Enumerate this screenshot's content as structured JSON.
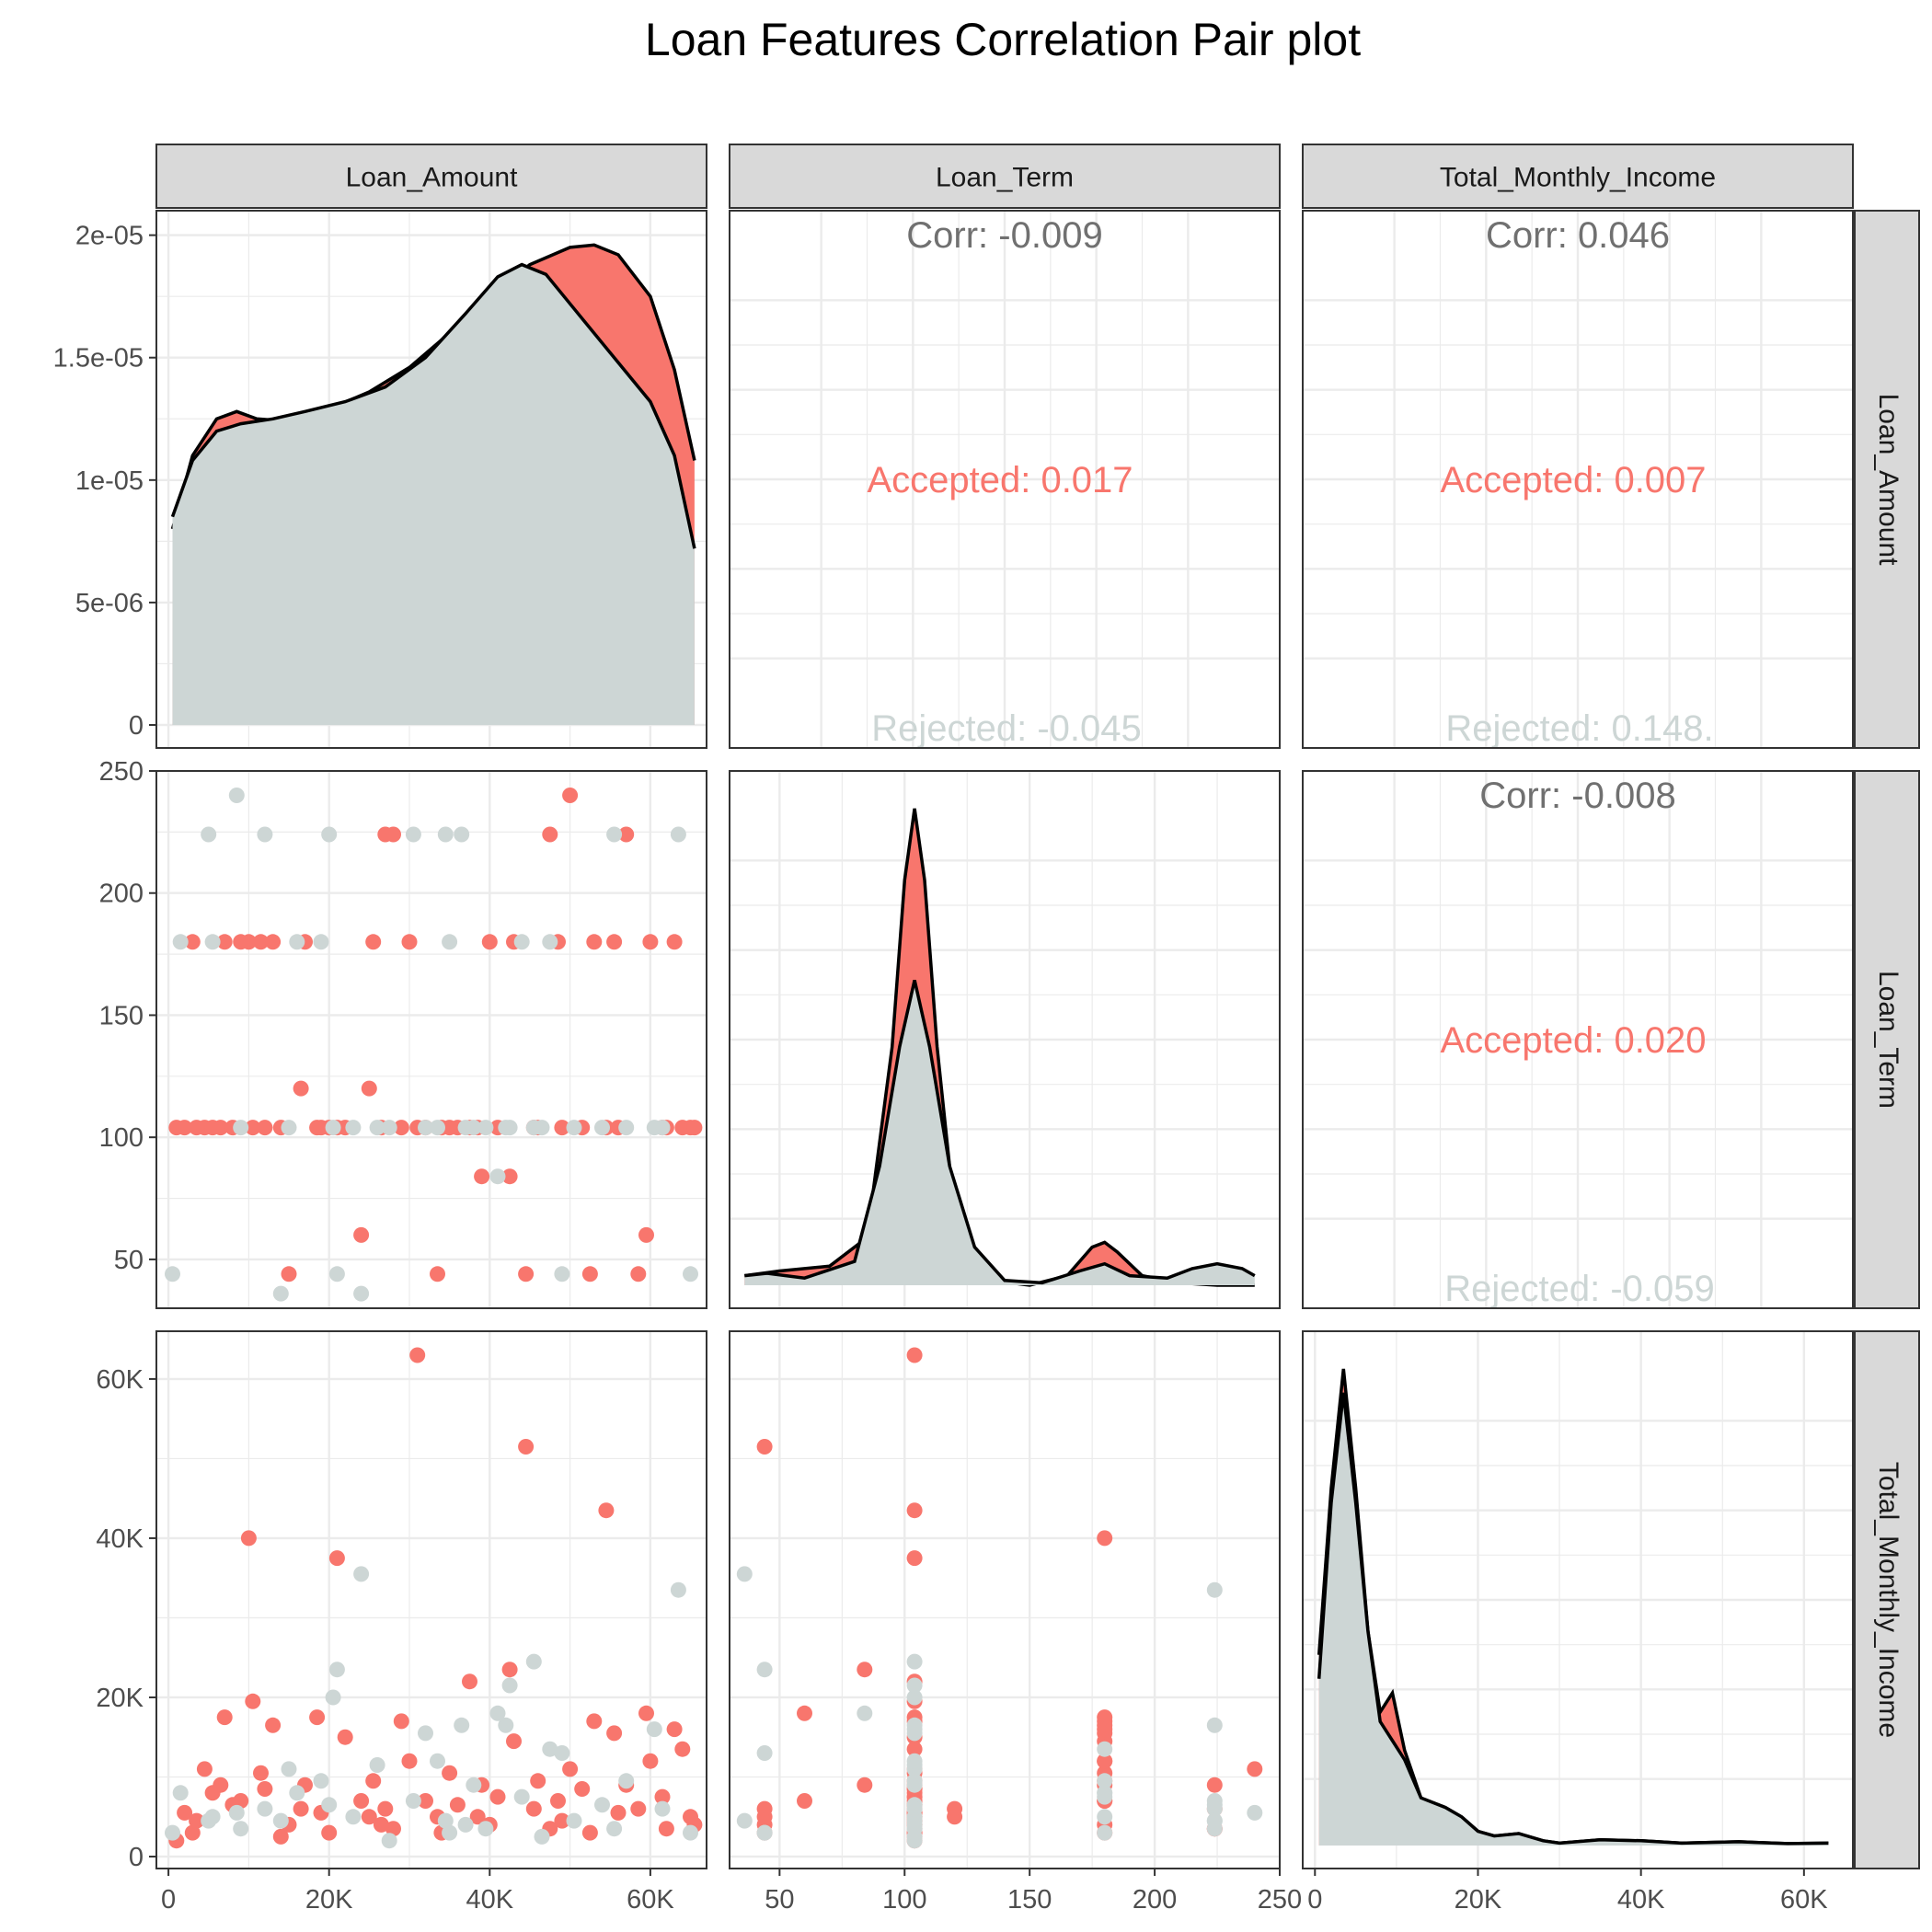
{
  "title": "Loan Features Correlation Pair plot",
  "variables": [
    "Loan_Amount",
    "Loan_Term",
    "Total_Monthly_Income"
  ],
  "colors": {
    "accepted": "#F8766D",
    "rejected": "#CDD6D5",
    "corr_text": "#707070",
    "strip_fill": "#D9D9D9",
    "grid": "#EBEBEB"
  },
  "chart_data": {
    "type": "scatter",
    "title": "Loan Features Correlation Pair plot",
    "groups": [
      "Accepted",
      "Rejected"
    ],
    "axes": {
      "Loan_Amount": {
        "range": [
          -1500,
          67000
        ],
        "ticks": [
          0,
          20000,
          40000,
          60000
        ],
        "tick_labels": [
          "0",
          "20K",
          "40K",
          "60K"
        ]
      },
      "Loan_Term": {
        "range": [
          30,
          250
        ],
        "ticks": [
          50,
          100,
          150,
          200,
          250
        ],
        "tick_labels": [
          "50",
          "100",
          "150",
          "200",
          "250"
        ]
      },
      "Total_Monthly_Income": {
        "range": [
          -1500,
          66000
        ],
        "ticks": [
          0,
          20000,
          40000,
          60000
        ],
        "tick_labels": [
          "0",
          "20K",
          "40K",
          "60K"
        ]
      },
      "density_1_1": {
        "range": [
          0,
          2.1e-05
        ],
        "ticks": [
          0,
          5e-06,
          1e-05,
          1.5e-05,
          2e-05
        ],
        "tick_labels": [
          "0",
          "5e-06",
          "1e-05",
          "1.5e-05",
          "2e-05"
        ]
      }
    },
    "correlations": {
      "Loan_Amount__Loan_Term": {
        "overall": "Corr: -0.009",
        "accepted": "Accepted: 0.017",
        "rejected": "Rejected: -0.045"
      },
      "Loan_Amount__Total_Monthly_Income": {
        "overall": "Corr: 0.046",
        "accepted": "Accepted: 0.007",
        "rejected": "Rejected: 0.148."
      },
      "Loan_Term__Total_Monthly_Income": {
        "overall": "Corr: -0.008",
        "accepted": "Accepted: 0.020",
        "rejected": "Rejected: -0.059"
      }
    },
    "densities": {
      "Loan_Amount": {
        "accepted": [
          [
            500,
            8e-06
          ],
          [
            3000,
            1.1e-05
          ],
          [
            6000,
            1.25e-05
          ],
          [
            8500,
            1.28e-05
          ],
          [
            11000,
            1.25e-05
          ],
          [
            15000,
            1.24e-05
          ],
          [
            20000,
            1.29e-05
          ],
          [
            25000,
            1.36e-05
          ],
          [
            30000,
            1.46e-05
          ],
          [
            35000,
            1.6e-05
          ],
          [
            40000,
            1.75e-05
          ],
          [
            45000,
            1.88e-05
          ],
          [
            50000,
            1.95e-05
          ],
          [
            53000,
            1.96e-05
          ],
          [
            56000,
            1.92e-05
          ],
          [
            60000,
            1.75e-05
          ],
          [
            63000,
            1.45e-05
          ],
          [
            65500,
            1.08e-05
          ]
        ],
        "rejected": [
          [
            500,
            8.5e-06
          ],
          [
            3000,
            1.08e-05
          ],
          [
            6000,
            1.2e-05
          ],
          [
            9000,
            1.23e-05
          ],
          [
            13000,
            1.25e-05
          ],
          [
            17000,
            1.28e-05
          ],
          [
            22000,
            1.32e-05
          ],
          [
            27000,
            1.38e-05
          ],
          [
            32000,
            1.5e-05
          ],
          [
            37000,
            1.68e-05
          ],
          [
            41000,
            1.83e-05
          ],
          [
            44000,
            1.88e-05
          ],
          [
            47000,
            1.84e-05
          ],
          [
            50000,
            1.72e-05
          ],
          [
            55000,
            1.52e-05
          ],
          [
            60000,
            1.32e-05
          ],
          [
            63000,
            1.1e-05
          ],
          [
            65500,
            7.2e-06
          ]
        ]
      },
      "Loan_Term": {
        "accepted": [
          [
            36,
            0.02
          ],
          [
            50,
            0.03
          ],
          [
            70,
            0.04
          ],
          [
            85,
            0.1
          ],
          [
            95,
            0.5
          ],
          [
            100,
            0.85
          ],
          [
            104,
            1.0
          ],
          [
            108,
            0.85
          ],
          [
            113,
            0.5
          ],
          [
            120,
            0.15
          ],
          [
            135,
            0.01
          ],
          [
            150,
            0.0
          ],
          [
            165,
            0.02
          ],
          [
            175,
            0.08
          ],
          [
            180,
            0.09
          ],
          [
            185,
            0.07
          ],
          [
            195,
            0.02
          ],
          [
            210,
            0.005
          ],
          [
            225,
            0.0
          ],
          [
            240,
            0.0
          ]
        ],
        "rejected": [
          [
            36,
            0.02
          ],
          [
            45,
            0.025
          ],
          [
            60,
            0.015
          ],
          [
            80,
            0.05
          ],
          [
            90,
            0.25
          ],
          [
            98,
            0.5
          ],
          [
            104,
            0.64
          ],
          [
            110,
            0.5
          ],
          [
            118,
            0.25
          ],
          [
            128,
            0.08
          ],
          [
            140,
            0.01
          ],
          [
            155,
            0.005
          ],
          [
            170,
            0.03
          ],
          [
            180,
            0.045
          ],
          [
            190,
            0.02
          ],
          [
            205,
            0.015
          ],
          [
            215,
            0.035
          ],
          [
            225,
            0.045
          ],
          [
            235,
            0.035
          ],
          [
            240,
            0.02
          ]
        ]
      },
      "Total_Monthly_Income": {
        "accepted": [
          [
            500,
            0.4
          ],
          [
            2000,
            0.75
          ],
          [
            3500,
            1.0
          ],
          [
            5000,
            0.75
          ],
          [
            6500,
            0.45
          ],
          [
            8000,
            0.28
          ],
          [
            9500,
            0.32
          ],
          [
            11000,
            0.2
          ],
          [
            13000,
            0.1
          ],
          [
            16000,
            0.08
          ],
          [
            18000,
            0.06
          ],
          [
            20000,
            0.03
          ],
          [
            22000,
            0.02
          ],
          [
            25000,
            0.025
          ],
          [
            28000,
            0.01
          ],
          [
            30000,
            0.005
          ],
          [
            35000,
            0.012
          ],
          [
            40000,
            0.01
          ],
          [
            45000,
            0.005
          ],
          [
            52000,
            0.008
          ],
          [
            58000,
            0.004
          ],
          [
            63000,
            0.005
          ]
        ],
        "rejected": [
          [
            500,
            0.35
          ],
          [
            2000,
            0.72
          ],
          [
            3500,
            0.95
          ],
          [
            5000,
            0.72
          ],
          [
            6500,
            0.45
          ],
          [
            8000,
            0.26
          ],
          [
            9500,
            0.22
          ],
          [
            11000,
            0.18
          ],
          [
            13000,
            0.1
          ],
          [
            16000,
            0.08
          ],
          [
            18000,
            0.06
          ],
          [
            20000,
            0.03
          ],
          [
            22000,
            0.02
          ],
          [
            25000,
            0.025
          ],
          [
            28000,
            0.01
          ],
          [
            30000,
            0.005
          ],
          [
            35000,
            0.012
          ],
          [
            40000,
            0.01
          ],
          [
            45000,
            0.005
          ],
          [
            52000,
            0.008
          ],
          [
            58000,
            0.004
          ],
          [
            63000,
            0.005
          ]
        ]
      }
    },
    "points": {
      "accepted": [
        [
          1000,
          104,
          2000
        ],
        [
          2000,
          104,
          5500
        ],
        [
          3000,
          180,
          3000
        ],
        [
          4500,
          104,
          11000
        ],
        [
          5500,
          104,
          8000
        ],
        [
          6500,
          104,
          9000
        ],
        [
          7000,
          180,
          17500
        ],
        [
          9000,
          180,
          7000
        ],
        [
          10000,
          180,
          40000
        ],
        [
          10500,
          104,
          19500
        ],
        [
          11500,
          180,
          10500
        ],
        [
          12000,
          104,
          8500
        ],
        [
          13000,
          180,
          16500
        ],
        [
          14000,
          104,
          2500
        ],
        [
          15000,
          44,
          4000
        ],
        [
          16500,
          120,
          6000
        ],
        [
          17000,
          180,
          9000
        ],
        [
          18500,
          104,
          17500
        ],
        [
          20000,
          104,
          3000
        ],
        [
          21000,
          104,
          37500
        ],
        [
          22000,
          104,
          15000
        ],
        [
          24000,
          60,
          7000
        ],
        [
          25000,
          120,
          5000
        ],
        [
          25500,
          180,
          9500
        ],
        [
          27000,
          224,
          6000
        ],
        [
          28000,
          224,
          3500
        ],
        [
          29000,
          104,
          17000
        ],
        [
          30000,
          180,
          12000
        ],
        [
          31000,
          104,
          63000
        ],
        [
          32000,
          104,
          7000
        ],
        [
          33500,
          44,
          5000
        ],
        [
          35000,
          104,
          10500
        ],
        [
          36000,
          104,
          6500
        ],
        [
          37500,
          104,
          22000
        ],
        [
          39000,
          84,
          9000
        ],
        [
          40000,
          180,
          4000
        ],
        [
          41000,
          104,
          7500
        ],
        [
          42500,
          84,
          23500
        ],
        [
          43000,
          180,
          14500
        ],
        [
          44500,
          44,
          51500
        ],
        [
          46000,
          104,
          9500
        ],
        [
          47500,
          224,
          3500
        ],
        [
          48500,
          180,
          7000
        ],
        [
          50000,
          240,
          11000
        ],
        [
          51500,
          104,
          8500
        ],
        [
          52500,
          44,
          3000
        ],
        [
          53000,
          180,
          17000
        ],
        [
          54500,
          104,
          43500
        ],
        [
          55500,
          180,
          15500
        ],
        [
          57000,
          224,
          9000
        ],
        [
          58500,
          44,
          6000
        ],
        [
          59500,
          60,
          18000
        ],
        [
          60000,
          180,
          12000
        ],
        [
          61500,
          104,
          7500
        ],
        [
          63000,
          180,
          16000
        ],
        [
          64000,
          104,
          13500
        ],
        [
          65000,
          104,
          5000
        ],
        [
          65500,
          104,
          4000
        ],
        [
          3500,
          104,
          4500
        ],
        [
          8000,
          104,
          6500
        ],
        [
          19000,
          104,
          5500
        ],
        [
          26500,
          104,
          4000
        ],
        [
          34000,
          104,
          3000
        ],
        [
          38500,
          104,
          5000
        ],
        [
          45500,
          104,
          6000
        ],
        [
          49000,
          104,
          4500
        ],
        [
          56000,
          104,
          5500
        ],
        [
          62000,
          104,
          3500
        ]
      ],
      "rejected": [
        [
          500,
          44,
          3000
        ],
        [
          1500,
          180,
          8000
        ],
        [
          5000,
          224,
          4500
        ],
        [
          5500,
          180,
          5000
        ],
        [
          8500,
          240,
          5500
        ],
        [
          9000,
          104,
          3500
        ],
        [
          12000,
          224,
          6000
        ],
        [
          14000,
          36,
          4500
        ],
        [
          15000,
          104,
          11000
        ],
        [
          16000,
          180,
          8000
        ],
        [
          20000,
          224,
          6500
        ],
        [
          20500,
          104,
          20000
        ],
        [
          21000,
          44,
          23500
        ],
        [
          23000,
          104,
          5000
        ],
        [
          24000,
          36,
          35500
        ],
        [
          26000,
          104,
          11500
        ],
        [
          30500,
          224,
          7000
        ],
        [
          32000,
          104,
          15500
        ],
        [
          33500,
          104,
          12000
        ],
        [
          34500,
          224,
          4500
        ],
        [
          35000,
          180,
          3000
        ],
        [
          36500,
          224,
          16500
        ],
        [
          38000,
          104,
          9000
        ],
        [
          39500,
          104,
          3500
        ],
        [
          41000,
          84,
          18000
        ],
        [
          42000,
          104,
          16500
        ],
        [
          42500,
          104,
          21500
        ],
        [
          44000,
          180,
          7500
        ],
        [
          45500,
          104,
          24500
        ],
        [
          47500,
          180,
          13500
        ],
        [
          49000,
          44,
          13000
        ],
        [
          50500,
          104,
          4500
        ],
        [
          54000,
          104,
          6500
        ],
        [
          55500,
          224,
          3500
        ],
        [
          57000,
          104,
          9500
        ],
        [
          60500,
          104,
          16000
        ],
        [
          63500,
          224,
          33500
        ],
        [
          65000,
          44,
          3000
        ],
        [
          19000,
          180,
          9500
        ],
        [
          27500,
          104,
          2000
        ],
        [
          37000,
          104,
          4000
        ],
        [
          46500,
          104,
          2500
        ],
        [
          61500,
          104,
          6000
        ]
      ]
    }
  }
}
